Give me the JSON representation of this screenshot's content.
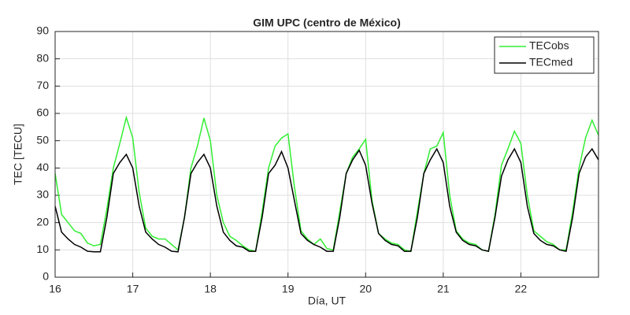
{
  "chart_data": {
    "type": "line",
    "title": "GIM UPC (centro de México)",
    "x_label": "Día, UT",
    "y_label": "TEC [TECU]",
    "x": [
      16,
      16.083,
      16.167,
      16.25,
      16.333,
      16.417,
      16.5,
      16.583,
      16.667,
      16.75,
      16.833,
      16.917,
      17,
      17.083,
      17.167,
      17.25,
      17.333,
      17.417,
      17.5,
      17.583,
      17.667,
      17.75,
      17.833,
      17.917,
      18,
      18.083,
      18.167,
      18.25,
      18.333,
      18.417,
      18.5,
      18.583,
      18.667,
      18.75,
      18.833,
      18.917,
      19,
      19.083,
      19.167,
      19.25,
      19.333,
      19.417,
      19.5,
      19.583,
      19.667,
      19.75,
      19.833,
      19.917,
      20,
      20.083,
      20.167,
      20.25,
      20.333,
      20.417,
      20.5,
      20.583,
      20.667,
      20.75,
      20.833,
      20.917,
      21,
      21.083,
      21.167,
      21.25,
      21.333,
      21.417,
      21.5,
      21.583,
      21.667,
      21.75,
      21.833,
      21.917,
      22,
      22.083,
      22.167,
      22.25,
      22.333,
      22.417,
      22.5,
      22.583,
      22.667,
      22.75,
      22.833,
      22.917,
      23
    ],
    "series": [
      {
        "name": "TECobs",
        "color": "#33ee33",
        "values": [
          38,
          23,
          20,
          17,
          16,
          12.5,
          11.5,
          12,
          25,
          40,
          49,
          58.5,
          51,
          31,
          18,
          15,
          14,
          14,
          12,
          10,
          22,
          40,
          48,
          58.3,
          50,
          30,
          20,
          15,
          13.5,
          11.5,
          10,
          9.5,
          24,
          40,
          48,
          51,
          52.5,
          33,
          17,
          14,
          12,
          14,
          10.5,
          10,
          24,
          38,
          44,
          47,
          50.5,
          28,
          16,
          14,
          12.5,
          12,
          10,
          9.5,
          24,
          38,
          47,
          48,
          53,
          30,
          17,
          14,
          12.5,
          12,
          10,
          9.5,
          23,
          41,
          47,
          53.5,
          49,
          30,
          17,
          15,
          13,
          12,
          10,
          10,
          24,
          40,
          51,
          57.5,
          52
        ]
      },
      {
        "name": "TECmed",
        "color": "#000000",
        "values": [
          26,
          16.5,
          14,
          12,
          11,
          9.5,
          9.3,
          9.3,
          22,
          38,
          42,
          45,
          40,
          26,
          16.5,
          14,
          12,
          11,
          9.5,
          9.3,
          22,
          38,
          42,
          45,
          40,
          26,
          16.5,
          13.5,
          11.5,
          11,
          9.5,
          9.5,
          22,
          38,
          41,
          46,
          40,
          28,
          16,
          13.5,
          12,
          11,
          9.5,
          9.5,
          22,
          38,
          43,
          46.5,
          41,
          27,
          16,
          13.5,
          12,
          11.5,
          9.5,
          9.5,
          22,
          38,
          43,
          47,
          42,
          26,
          16.5,
          13.5,
          12,
          11.5,
          10,
          9.5,
          22,
          37,
          43,
          47,
          42,
          26,
          16,
          13.5,
          12,
          11.5,
          10,
          9.5,
          22,
          38,
          44,
          47,
          43
        ]
      }
    ],
    "xlim": [
      16,
      23
    ],
    "ylim": [
      0,
      90
    ],
    "xticks": [
      16,
      17,
      18,
      19,
      20,
      21,
      22
    ],
    "yticks": [
      0,
      10,
      20,
      30,
      40,
      50,
      60,
      70,
      80,
      90
    ],
    "grid": true,
    "legend": "top-right"
  }
}
